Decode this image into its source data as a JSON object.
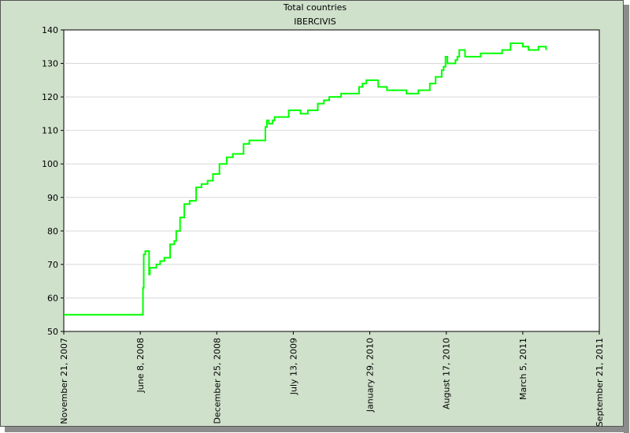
{
  "chart_data": {
    "type": "line",
    "title": "Total countries",
    "subtitle": "IBERCIVIS",
    "xlabel": "",
    "ylabel": "",
    "x_axis_type": "date",
    "xlim": [
      "2007-11-21",
      "2011-09-21"
    ],
    "ylim": [
      50,
      140
    ],
    "x_ticks": [
      {
        "date": "2007-11-21",
        "label": "November 21, 2007"
      },
      {
        "date": "2008-06-08",
        "label": "June 8, 2008"
      },
      {
        "date": "2008-12-25",
        "label": "December 25, 2008"
      },
      {
        "date": "2009-07-13",
        "label": "July 13, 2009"
      },
      {
        "date": "2010-01-29",
        "label": "January 29, 2010"
      },
      {
        "date": "2010-08-17",
        "label": "August 17, 2010"
      },
      {
        "date": "2011-03-05",
        "label": "March 5, 2011"
      },
      {
        "date": "2011-09-21",
        "label": "September 21, 2011"
      }
    ],
    "y_ticks": [
      50,
      60,
      70,
      80,
      90,
      100,
      110,
      120,
      130,
      140
    ],
    "grid": true,
    "legend": "none",
    "series_color": "#00ff00",
    "series": [
      {
        "x": [
          "2007-11-21",
          "2008-06-14",
          "2008-06-15",
          "2008-06-17",
          "2008-06-21",
          "2008-06-28",
          "2008-07-01",
          "2008-07-03",
          "2008-07-10",
          "2008-07-20",
          "2008-07-30",
          "2008-08-05",
          "2008-08-10",
          "2008-08-16",
          "2008-08-25",
          "2008-09-05",
          "2008-09-10",
          "2008-09-20",
          "2008-10-01",
          "2008-10-15",
          "2008-11-01",
          "2008-11-15",
          "2008-12-01",
          "2008-12-15",
          "2009-01-01",
          "2009-01-20",
          "2009-02-05",
          "2009-02-20",
          "2009-03-05",
          "2009-03-20",
          "2009-04-01",
          "2009-04-15",
          "2009-05-01",
          "2009-05-05",
          "2009-05-10",
          "2009-05-20",
          "2009-05-25",
          "2009-06-01",
          "2009-06-10",
          "2009-06-20",
          "2009-07-01",
          "2009-08-01",
          "2009-08-10",
          "2009-08-20",
          "2009-09-01",
          "2009-09-15",
          "2009-10-01",
          "2009-10-15",
          "2009-11-01",
          "2009-11-15",
          "2009-12-01",
          "2009-12-20",
          "2010-01-01",
          "2010-01-10",
          "2010-01-20",
          "2010-02-05",
          "2010-02-20",
          "2010-03-15",
          "2010-04-15",
          "2010-04-25",
          "2010-05-05",
          "2010-05-20",
          "2010-06-05",
          "2010-06-20",
          "2010-07-05",
          "2010-07-20",
          "2010-08-05",
          "2010-08-10",
          "2010-08-15",
          "2010-08-20",
          "2010-08-30",
          "2010-09-10",
          "2010-09-15",
          "2010-09-20",
          "2010-10-05",
          "2010-10-25",
          "2010-11-15",
          "2011-01-10",
          "2011-01-18",
          "2011-02-01",
          "2011-02-20",
          "2011-03-05",
          "2011-03-20",
          "2011-04-01",
          "2011-04-15",
          "2011-05-05"
        ],
        "y": [
          55,
          55,
          63,
          73,
          74,
          74,
          67,
          69,
          69,
          70,
          71,
          71,
          72,
          72,
          76,
          77,
          80,
          84,
          88,
          89,
          93,
          94,
          95,
          97,
          100,
          102,
          103,
          103,
          106,
          107,
          107,
          107,
          111,
          113,
          112,
          113,
          114,
          114,
          114,
          114,
          116,
          115,
          115,
          116,
          116,
          118,
          119,
          120,
          120,
          121,
          121,
          121,
          123,
          124,
          125,
          125,
          123,
          122,
          122,
          122,
          121,
          121,
          122,
          122,
          124,
          126,
          128,
          129,
          132,
          130,
          130,
          131,
          132,
          134,
          132,
          132,
          133,
          134,
          134,
          136,
          136,
          135,
          134,
          134,
          135,
          134
        ]
      }
    ]
  }
}
